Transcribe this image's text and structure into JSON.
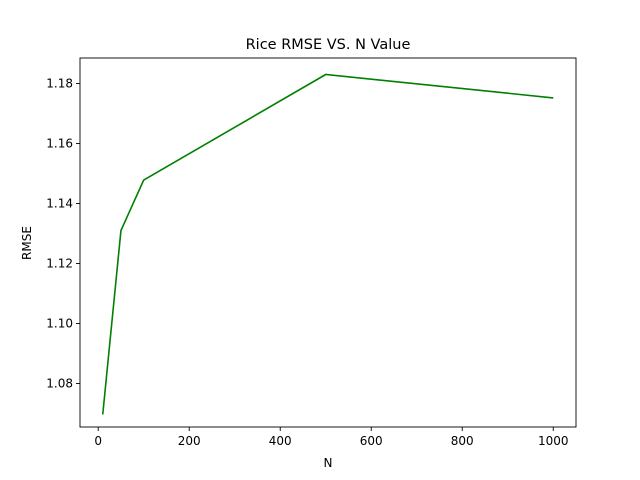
{
  "chart_data": {
    "type": "line",
    "title": "Rice RMSE VS. N Value",
    "xlabel": "N",
    "ylabel": "RMSE",
    "xlim": [
      -40,
      1050
    ],
    "ylim": [
      1.0655,
      1.1885
    ],
    "xticks": [
      0,
      200,
      400,
      600,
      800,
      1000
    ],
    "xtick_labels": [
      "0",
      "200",
      "400",
      "600",
      "800",
      "1000"
    ],
    "yticks": [
      1.08,
      1.1,
      1.12,
      1.14,
      1.16,
      1.18
    ],
    "ytick_labels": [
      "1.08",
      "1.10",
      "1.12",
      "1.14",
      "1.16",
      "1.18"
    ],
    "grid": false,
    "series": [
      {
        "color": "#008000",
        "x": [
          10,
          50,
          100,
          500,
          1000
        ],
        "y": [
          1.0697,
          1.131,
          1.1478,
          1.183,
          1.1752
        ]
      }
    ]
  }
}
